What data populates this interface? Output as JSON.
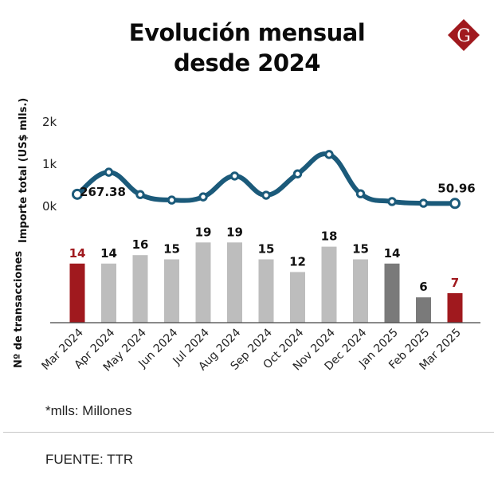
{
  "header": {
    "title_line1": "Evolución mensual",
    "title_line2": "desde 2024",
    "logo_letter": "G"
  },
  "colors": {
    "line": "#1B5A7A",
    "highlight_bar": "#A0191E",
    "bar_2024": "#BDBDBD",
    "bar_2025": "#7A7A7A",
    "highlight_label": "#A0191E"
  },
  "chart_data": [
    {
      "type": "line",
      "title": "Importe total (US$ mlls.)",
      "ylabel": "Importe total (US$ mlls.)",
      "categories": [
        "Mar 2024",
        "Apr 2024",
        "May 2024",
        "Jun 2024",
        "Jul 2024",
        "Aug 2024",
        "Sep 2024",
        "Oct 2024",
        "Nov 2024",
        "Dec 2024",
        "Jan 2025",
        "Feb 2025",
        "Mar 2025"
      ],
      "values": [
        267.38,
        790,
        260,
        130,
        205,
        700,
        245,
        750,
        1210,
        280,
        95,
        55,
        50.96
      ],
      "ylim": [
        0,
        2000
      ],
      "yticks": [
        "0k",
        "1k",
        "2k"
      ],
      "yticks_values": [
        0,
        1000,
        2000
      ],
      "data_labels": [
        {
          "index": 0,
          "text": "267.38"
        },
        {
          "index": 12,
          "text": "50.96"
        }
      ],
      "grid": false
    },
    {
      "type": "bar",
      "ylabel": "Nº de transacciones",
      "categories": [
        "Mar 2024",
        "Apr 2024",
        "May 2024",
        "Jun 2024",
        "Jul 2024",
        "Aug 2024",
        "Sep 2024",
        "Oct 2024",
        "Nov 2024",
        "Dec 2024",
        "Jan 2025",
        "Feb 2025",
        "Mar 2025"
      ],
      "values": [
        14,
        14,
        16,
        15,
        19,
        19,
        15,
        12,
        18,
        15,
        14,
        6,
        7
      ],
      "bar_groups": [
        "highlight",
        "2024",
        "2024",
        "2024",
        "2024",
        "2024",
        "2024",
        "2024",
        "2024",
        "2024",
        "2025",
        "2025",
        "highlight"
      ],
      "ylim": [
        0,
        19
      ],
      "grid": false
    }
  ],
  "footer": {
    "note": "*mlls: Millones",
    "source": "FUENTE: TTR"
  }
}
